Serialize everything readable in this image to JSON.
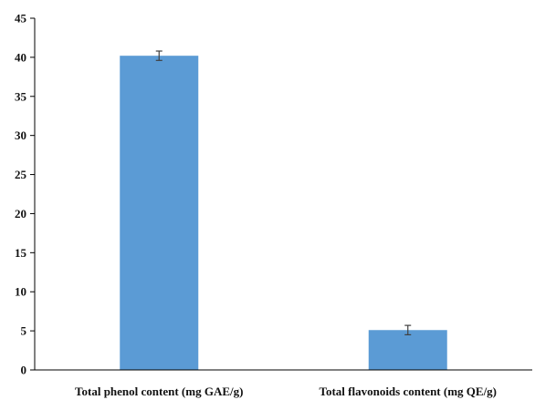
{
  "chart_data": {
    "type": "bar",
    "title": "",
    "xlabel": "",
    "ylabel": "",
    "categories": [
      "Total phenol content (mg GAE/g)",
      "Total flavonoids content (mg QE/g)"
    ],
    "values": [
      40.2,
      5.1
    ],
    "error": [
      0.6,
      0.6
    ],
    "ylim": [
      0,
      45
    ],
    "yticks": [
      0,
      5,
      10,
      15,
      20,
      25,
      30,
      35,
      40,
      45
    ],
    "grid": false,
    "legend": "none",
    "colors": {
      "bar": "#5b9bd5",
      "axis": "#000000",
      "error_bar": "#404040"
    }
  }
}
